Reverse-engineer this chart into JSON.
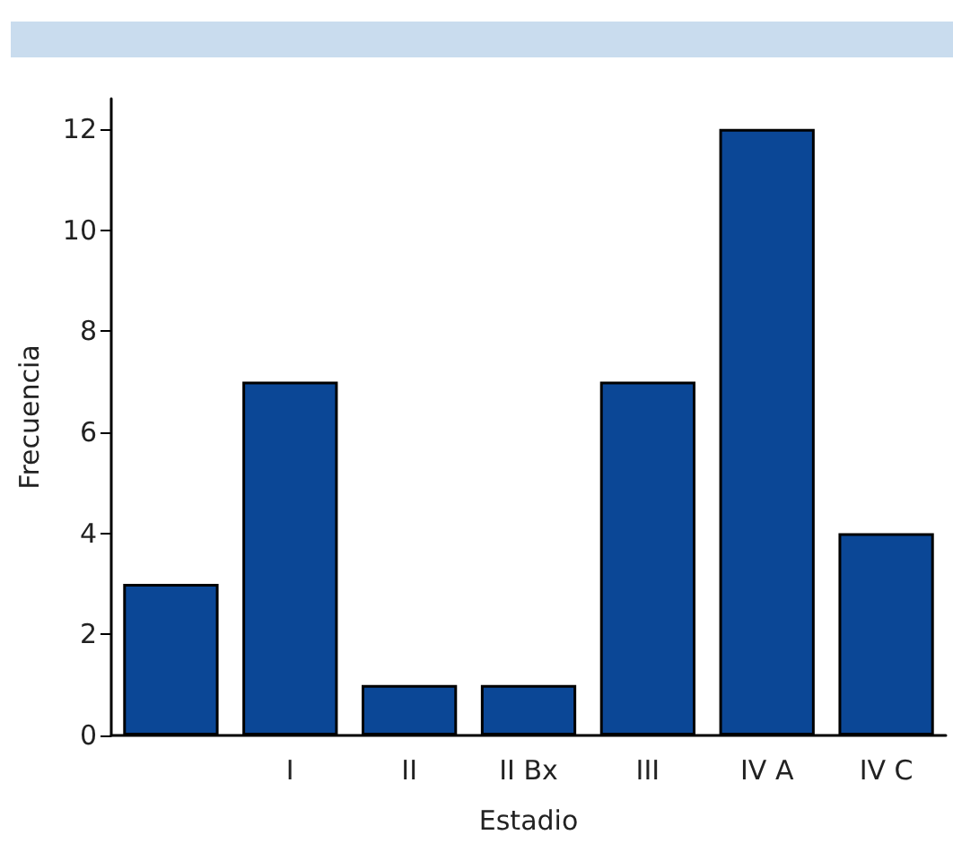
{
  "chart_data": {
    "type": "bar",
    "xlabel": "Estadio",
    "ylabel": "Frecuencia",
    "categories": [
      null,
      "I",
      "II",
      "II Bx",
      "III",
      "IV A",
      "IV C"
    ],
    "series": [
      {
        "color": "#0b4796",
        "values": [
          3,
          7,
          1,
          1,
          7,
          12,
          4
        ]
      }
    ],
    "ylim": [
      0,
      12.6
    ],
    "yticks": [
      0,
      2,
      4,
      6,
      8,
      10,
      12
    ],
    "grid": false
  }
}
